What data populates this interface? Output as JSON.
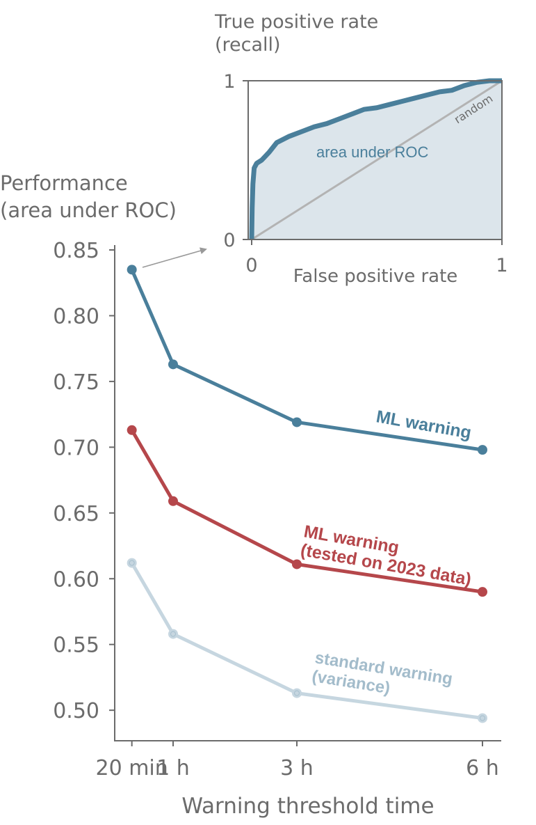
{
  "chart_data": [
    {
      "id": "main",
      "type": "line",
      "ylabel": "Performance\n(area under ROC)",
      "ylabel_lines": [
        "Performance",
        "(area under ROC)"
      ],
      "xlabel": "Warning threshold time",
      "x_hours": [
        0.3333,
        1,
        3,
        6
      ],
      "categories": [
        "20 min",
        "1 h",
        "3 h",
        "6 h"
      ],
      "ylim": [
        0.48,
        0.855
      ],
      "yticks": [
        0.85,
        0.8,
        0.75,
        0.7,
        0.65,
        0.6,
        0.55,
        0.5
      ],
      "ytick_labels": [
        "0.85",
        "0.80",
        "0.75",
        "0.70",
        "0.65",
        "0.60",
        "0.55",
        "0.50"
      ],
      "grid": false,
      "series": [
        {
          "name": "ML warning",
          "label_lines": [
            "ML warning"
          ],
          "color": "#4a7f9b",
          "opacity": 1,
          "values": [
            0.835,
            0.763,
            0.719,
            0.698
          ]
        },
        {
          "name": "ML warning (tested on 2023 data)",
          "label_lines": [
            "ML warning",
            "(tested on 2023 data)"
          ],
          "color": "#b5474b",
          "opacity": 1,
          "values": [
            0.713,
            0.659,
            0.611,
            0.59
          ]
        },
        {
          "name": "standard warning (variance)",
          "label_lines": [
            "standard warning",
            "(variance)"
          ],
          "color": "#a8c1d0",
          "opacity": 0.65,
          "values": [
            0.612,
            0.558,
            0.513,
            0.494
          ]
        }
      ],
      "annotation": "arrow from ML warning 20 min point to inset ROC plot"
    },
    {
      "id": "inset",
      "type": "area",
      "title": "",
      "ylabel_lines": [
        "True positive rate",
        "(recall)"
      ],
      "xlabel": "False positive rate",
      "xlim": [
        0,
        1
      ],
      "ylim": [
        0,
        1
      ],
      "xticks": [
        0,
        1
      ],
      "yticks": [
        0,
        1
      ],
      "xtick_labels": [
        "0",
        "1"
      ],
      "ytick_labels": [
        "0",
        "1"
      ],
      "fill_label": "area under ROC",
      "diagonal_label": "random",
      "curve_color": "#4a7f9b",
      "fill_color": "#dce5eb",
      "diagonal_color": "#b3b3b3",
      "roc_fpr": [
        0,
        0.002,
        0.005,
        0.01,
        0.02,
        0.04,
        0.07,
        0.1,
        0.15,
        0.2,
        0.25,
        0.3,
        0.35,
        0.4,
        0.45,
        0.5,
        0.55,
        0.6,
        0.65,
        0.7,
        0.75,
        0.8,
        0.85,
        0.9,
        0.95,
        1.0
      ],
      "roc_tpr": [
        0,
        0.2,
        0.35,
        0.45,
        0.48,
        0.5,
        0.55,
        0.61,
        0.65,
        0.68,
        0.71,
        0.73,
        0.76,
        0.79,
        0.82,
        0.83,
        0.85,
        0.87,
        0.89,
        0.91,
        0.93,
        0.94,
        0.97,
        0.99,
        1.0,
        1.0
      ]
    }
  ]
}
